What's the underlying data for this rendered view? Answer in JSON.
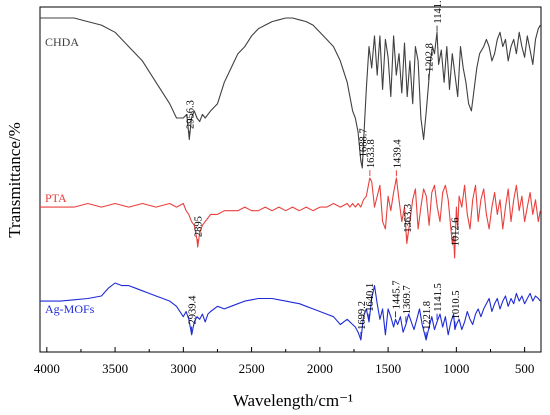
{
  "chart_data": {
    "type": "line",
    "title": "",
    "xlabel": "Wavelength/cm⁻¹",
    "ylabel": "Transmittance/%",
    "xlim": [
      4050,
      380
    ],
    "x_reversed": true,
    "x_ticks": [
      4000,
      3500,
      3000,
      2500,
      2000,
      1500,
      1000,
      500
    ],
    "y_ticklabels_shown": false,
    "grid": false,
    "legend": "none",
    "series": [
      {
        "name": "CHDA",
        "color": "#404040",
        "baseline": 0,
        "x": [
          4050,
          3900,
          3800,
          3700,
          3600,
          3500,
          3400,
          3300,
          3200,
          3100,
          3050,
          3000,
          2975,
          2956,
          2940,
          2920,
          2900,
          2880,
          2860,
          2840,
          2800,
          2750,
          2700,
          2650,
          2600,
          2550,
          2500,
          2450,
          2400,
          2350,
          2300,
          2250,
          2200,
          2150,
          2100,
          2050,
          2000,
          1950,
          1900,
          1850,
          1800,
          1780,
          1760,
          1740,
          1720,
          1700,
          1689,
          1680,
          1660,
          1640,
          1620,
          1600,
          1580,
          1560,
          1540,
          1520,
          1500,
          1480,
          1460,
          1440,
          1420,
          1400,
          1380,
          1360,
          1340,
          1320,
          1300,
          1280,
          1260,
          1240,
          1220,
          1203,
          1190,
          1175,
          1160,
          1142,
          1130,
          1110,
          1090,
          1070,
          1050,
          1030,
          1010,
          990,
          970,
          950,
          930,
          910,
          890,
          870,
          850,
          830,
          800,
          780,
          760,
          740,
          720,
          700,
          680,
          660,
          640,
          620,
          600,
          580,
          560,
          540,
          520,
          500,
          480,
          460,
          440,
          420,
          400,
          385
        ],
        "y": [
          98,
          98,
          98,
          97,
          96,
          94,
          90,
          86,
          80,
          74,
          70,
          70,
          71,
          64,
          70,
          72,
          70,
          69,
          71,
          70,
          72,
          74,
          80,
          84,
          88,
          90,
          93,
          95,
          96,
          97,
          97.5,
          98,
          98,
          97.5,
          97,
          96,
          94,
          92,
          90,
          86,
          80,
          76,
          72,
          70,
          66,
          58,
          56,
          63,
          78,
          90,
          84,
          93,
          82,
          93,
          78,
          92,
          87,
          76,
          93,
          82,
          88,
          77,
          91,
          76,
          86,
          74,
          90,
          86,
          70,
          64,
          72,
          80,
          86,
          90,
          88,
          94,
          85,
          89,
          80,
          90,
          78,
          88,
          82,
          76,
          90,
          84,
          80,
          74,
          72,
          78,
          84,
          88,
          90,
          92,
          90,
          86,
          88,
          92,
          94,
          90,
          92,
          86,
          90,
          92,
          88,
          94,
          90,
          87,
          93,
          89,
          85,
          92,
          95,
          96
        ]
      },
      {
        "name": "PTA",
        "color": "#e8413e",
        "baseline": 0,
        "x": [
          4050,
          3900,
          3800,
          3700,
          3600,
          3500,
          3400,
          3300,
          3200,
          3100,
          3050,
          3000,
          2980,
          2960,
          2940,
          2920,
          2900,
          2895,
          2880,
          2860,
          2840,
          2820,
          2800,
          2750,
          2700,
          2650,
          2600,
          2550,
          2500,
          2450,
          2400,
          2350,
          2300,
          2250,
          2200,
          2150,
          2100,
          2050,
          2000,
          1950,
          1900,
          1850,
          1800,
          1780,
          1760,
          1740,
          1720,
          1700,
          1680,
          1660,
          1634,
          1620,
          1600,
          1580,
          1560,
          1540,
          1520,
          1500,
          1480,
          1460,
          1439,
          1420,
          1400,
          1380,
          1363,
          1340,
          1320,
          1300,
          1280,
          1260,
          1240,
          1220,
          1200,
          1180,
          1160,
          1140,
          1120,
          1100,
          1080,
          1060,
          1040,
          1030,
          1020,
          1013,
          1000,
          990,
          980,
          960,
          940,
          920,
          900,
          880,
          860,
          840,
          820,
          800,
          780,
          760,
          740,
          720,
          700,
          680,
          660,
          640,
          620,
          600,
          580,
          560,
          540,
          520,
          500,
          480,
          460,
          440,
          420,
          400,
          385
        ],
        "y": [
          14,
          14,
          14,
          15,
          14,
          15,
          14,
          15,
          14,
          15,
          14,
          15,
          13,
          12,
          10,
          9,
          5,
          3,
          7,
          9,
          10,
          11,
          12,
          12,
          13,
          13,
          13,
          14,
          13,
          13,
          14,
          13,
          14,
          13,
          14,
          13,
          14,
          13,
          14,
          14,
          15,
          14,
          15,
          14,
          15,
          14,
          15,
          14,
          16,
          17,
          22,
          21,
          14,
          17,
          20,
          10,
          8,
          17,
          13,
          18,
          22,
          16,
          10,
          14,
          4,
          10,
          16,
          19,
          8,
          14,
          19,
          17,
          9,
          18,
          20,
          14,
          10,
          18,
          20,
          16,
          8,
          4,
          6,
          0,
          14,
          8,
          17,
          14,
          20,
          12,
          8,
          16,
          20,
          10,
          16,
          19,
          12,
          8,
          14,
          18,
          12,
          16,
          8,
          14,
          19,
          10,
          16,
          20,
          13,
          17,
          10,
          14,
          18,
          12,
          16,
          10,
          13
        ]
      },
      {
        "name": "Ag-MOFs",
        "color": "#1f2bd6",
        "baseline": 0,
        "x": [
          4050,
          3900,
          3800,
          3700,
          3600,
          3550,
          3500,
          3450,
          3400,
          3350,
          3300,
          3250,
          3200,
          3150,
          3100,
          3050,
          3000,
          2980,
          2960,
          2939,
          2920,
          2900,
          2880,
          2860,
          2840,
          2820,
          2800,
          2750,
          2700,
          2650,
          2600,
          2550,
          2500,
          2450,
          2400,
          2350,
          2300,
          2250,
          2200,
          2150,
          2100,
          2050,
          2000,
          1950,
          1900,
          1850,
          1800,
          1760,
          1740,
          1720,
          1699,
          1680,
          1660,
          1640,
          1620,
          1600,
          1580,
          1560,
          1540,
          1520,
          1500,
          1480,
          1460,
          1446,
          1430,
          1410,
          1390,
          1370,
          1350,
          1330,
          1310,
          1290,
          1270,
          1250,
          1222,
          1200,
          1180,
          1160,
          1142,
          1120,
          1100,
          1080,
          1060,
          1040,
          1020,
          1011,
          1000,
          980,
          960,
          940,
          920,
          900,
          880,
          860,
          840,
          820,
          800,
          780,
          760,
          740,
          720,
          700,
          680,
          660,
          640,
          620,
          600,
          580,
          560,
          540,
          520,
          500,
          480,
          460,
          440,
          420,
          400,
          385
        ],
        "y": [
          15,
          15,
          15.5,
          16,
          17,
          20,
          22,
          21,
          21,
          20,
          19,
          18,
          17,
          16,
          15,
          13,
          9,
          11,
          8,
          2,
          7,
          9,
          8,
          10,
          7,
          10,
          11,
          13,
          12,
          13,
          14,
          15,
          15.5,
          16,
          16,
          16,
          15.5,
          15,
          14.5,
          14,
          13,
          12,
          11,
          10,
          9,
          6,
          8,
          6,
          5,
          3,
          0,
          9,
          12,
          7,
          16,
          21,
          14,
          8,
          12,
          2,
          12,
          9,
          5,
          8,
          6,
          9,
          3,
          6,
          10,
          7,
          4,
          8,
          12,
          6,
          0,
          5,
          9,
          4,
          7,
          10,
          5,
          9,
          2,
          7,
          10,
          4,
          6,
          8,
          4,
          7,
          11,
          8,
          6,
          10,
          12,
          9,
          12,
          14,
          16,
          11,
          14,
          16,
          12,
          15,
          17,
          13,
          16,
          14,
          18,
          15,
          17,
          14,
          16,
          18,
          15,
          17,
          16,
          15
        ]
      }
    ],
    "series_labels": [
      "CHDA",
      "PTA",
      "Ag-MOFs"
    ],
    "annotations": [
      {
        "series": 0,
        "x": 2956.3,
        "text": "2956.3"
      },
      {
        "series": 0,
        "x": 1688.7,
        "text": "1688.7"
      },
      {
        "series": 0,
        "x": 1202.8,
        "text": "1202.8"
      },
      {
        "series": 0,
        "x": 1141.5,
        "text": "1141.5"
      },
      {
        "series": 1,
        "x": 2895,
        "text": "2895"
      },
      {
        "series": 1,
        "x": 1633.8,
        "text": "1633.8"
      },
      {
        "series": 1,
        "x": 1439.4,
        "text": "1439.4"
      },
      {
        "series": 1,
        "x": 1363.3,
        "text": "1363.3"
      },
      {
        "series": 1,
        "x": 1012.6,
        "text": "1012.6"
      },
      {
        "series": 2,
        "x": 2939.4,
        "text": "2939.4"
      },
      {
        "series": 2,
        "x": 1699.2,
        "text": "1699.2"
      },
      {
        "series": 2,
        "x": 1640.1,
        "text": "1640.1"
      },
      {
        "series": 2,
        "x": 1445.7,
        "text": "1445.7"
      },
      {
        "series": 2,
        "x": 1369.7,
        "text": "1369.7"
      },
      {
        "series": 2,
        "x": 1221.8,
        "text": "1221.8"
      },
      {
        "series": 2,
        "x": 1141.5,
        "text": "1141.5"
      },
      {
        "series": 2,
        "x": 1010.5,
        "text": "1010.5"
      }
    ]
  }
}
